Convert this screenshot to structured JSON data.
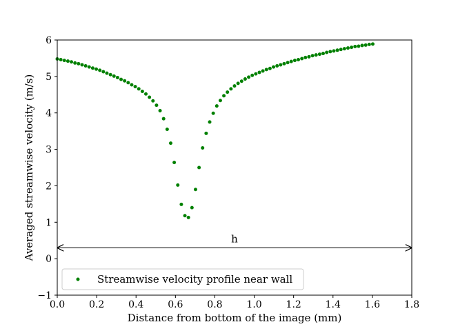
{
  "chart_data": {
    "type": "scatter",
    "title": "",
    "xlabel": "Distance from bottom of the image (mm)",
    "ylabel": "Averaged streamwise velocity (m/s)",
    "xlim": [
      0.0,
      1.8
    ],
    "ylim": [
      -1,
      6
    ],
    "x_ticks": [
      0.0,
      0.2,
      0.4,
      0.6,
      0.8,
      1.0,
      1.2,
      1.4,
      1.6,
      1.8
    ],
    "x_tick_labels": [
      "0.0",
      "0.2",
      "0.4",
      "0.6",
      "0.8",
      "1.0",
      "1.2",
      "1.4",
      "1.6",
      "1.8"
    ],
    "y_ticks": [
      -1,
      0,
      1,
      2,
      3,
      4,
      5,
      6
    ],
    "y_tick_labels": [
      "−1",
      "0",
      "1",
      "2",
      "3",
      "4",
      "5",
      "6"
    ],
    "grid": false,
    "legend_position": "bottom-left",
    "series": [
      {
        "name": "Streamwise velocity profile near wall",
        "color": "#008000",
        "marker": "dot",
        "points": [
          [
            0.0,
            5.48
          ],
          [
            0.018,
            5.46
          ],
          [
            0.036,
            5.44
          ],
          [
            0.054,
            5.42
          ],
          [
            0.072,
            5.4
          ],
          [
            0.09,
            5.37
          ],
          [
            0.108,
            5.35
          ],
          [
            0.126,
            5.32
          ],
          [
            0.144,
            5.29
          ],
          [
            0.162,
            5.26
          ],
          [
            0.18,
            5.23
          ],
          [
            0.198,
            5.2
          ],
          [
            0.216,
            5.17
          ],
          [
            0.234,
            5.13
          ],
          [
            0.252,
            5.09
          ],
          [
            0.27,
            5.05
          ],
          [
            0.288,
            5.01
          ],
          [
            0.306,
            4.97
          ],
          [
            0.324,
            4.92
          ],
          [
            0.342,
            4.88
          ],
          [
            0.36,
            4.83
          ],
          [
            0.378,
            4.77
          ],
          [
            0.396,
            4.72
          ],
          [
            0.414,
            4.66
          ],
          [
            0.432,
            4.59
          ],
          [
            0.45,
            4.52
          ],
          [
            0.468,
            4.43
          ],
          [
            0.486,
            4.33
          ],
          [
            0.504,
            4.21
          ],
          [
            0.522,
            4.06
          ],
          [
            0.54,
            3.84
          ],
          [
            0.558,
            3.55
          ],
          [
            0.576,
            3.17
          ],
          [
            0.594,
            2.64
          ],
          [
            0.612,
            2.02
          ],
          [
            0.63,
            1.49
          ],
          [
            0.648,
            1.18
          ],
          [
            0.666,
            1.13
          ],
          [
            0.684,
            1.4
          ],
          [
            0.702,
            1.9
          ],
          [
            0.72,
            2.5
          ],
          [
            0.738,
            3.04
          ],
          [
            0.756,
            3.44
          ],
          [
            0.774,
            3.75
          ],
          [
            0.792,
            3.99
          ],
          [
            0.81,
            4.19
          ],
          [
            0.828,
            4.34
          ],
          [
            0.846,
            4.47
          ],
          [
            0.864,
            4.57
          ],
          [
            0.882,
            4.66
          ],
          [
            0.9,
            4.74
          ],
          [
            0.918,
            4.81
          ],
          [
            0.936,
            4.87
          ],
          [
            0.954,
            4.93
          ],
          [
            0.972,
            4.98
          ],
          [
            0.99,
            5.03
          ],
          [
            1.008,
            5.07
          ],
          [
            1.026,
            5.11
          ],
          [
            1.044,
            5.15
          ],
          [
            1.062,
            5.19
          ],
          [
            1.08,
            5.22
          ],
          [
            1.098,
            5.26
          ],
          [
            1.116,
            5.29
          ],
          [
            1.134,
            5.32
          ],
          [
            1.152,
            5.35
          ],
          [
            1.17,
            5.38
          ],
          [
            1.188,
            5.41
          ],
          [
            1.206,
            5.44
          ],
          [
            1.224,
            5.46
          ],
          [
            1.242,
            5.49
          ],
          [
            1.26,
            5.52
          ],
          [
            1.278,
            5.54
          ],
          [
            1.296,
            5.57
          ],
          [
            1.314,
            5.59
          ],
          [
            1.332,
            5.61
          ],
          [
            1.35,
            5.63
          ],
          [
            1.368,
            5.66
          ],
          [
            1.386,
            5.68
          ],
          [
            1.404,
            5.7
          ],
          [
            1.422,
            5.72
          ],
          [
            1.44,
            5.74
          ],
          [
            1.458,
            5.76
          ],
          [
            1.476,
            5.78
          ],
          [
            1.494,
            5.8
          ],
          [
            1.512,
            5.82
          ],
          [
            1.53,
            5.83
          ],
          [
            1.548,
            5.85
          ],
          [
            1.566,
            5.86
          ],
          [
            1.584,
            5.88
          ],
          [
            1.602,
            5.89
          ]
        ]
      }
    ],
    "annotations": [
      {
        "type": "double-arrow",
        "label": "h",
        "x_start": 0.0,
        "x_end": 1.8,
        "y": 0.3
      }
    ]
  }
}
